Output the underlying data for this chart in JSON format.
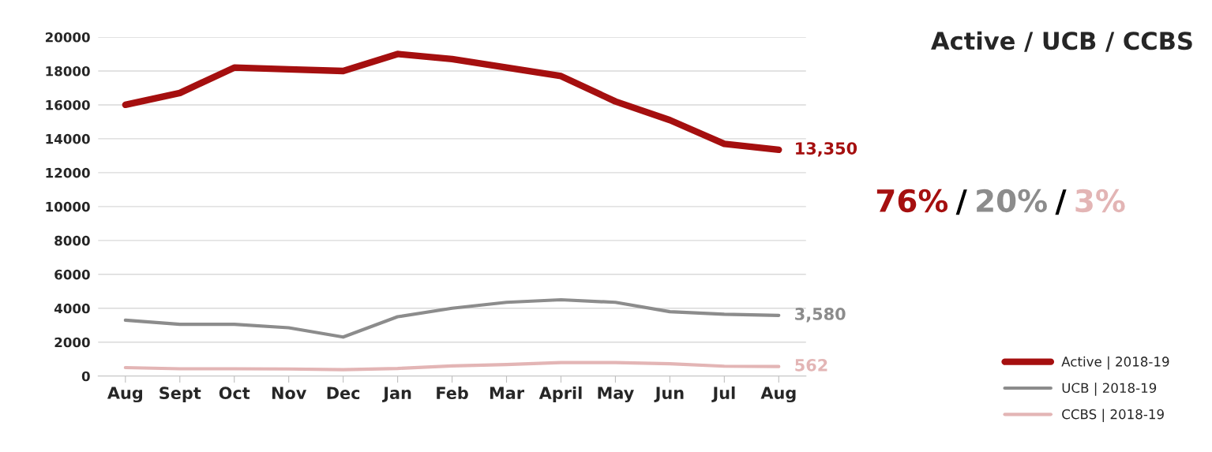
{
  "chart_data": {
    "type": "line",
    "title": "Active / UCB / CCBS",
    "categories": [
      "Aug",
      "Sept",
      "Oct",
      "Nov",
      "Dec",
      "Jan",
      "Feb",
      "Mar",
      "April",
      "May",
      "Jun",
      "Jul",
      "Aug"
    ],
    "series": [
      {
        "name": "Active | 2018-19",
        "color": "#a50f0f",
        "values": [
          16000,
          16700,
          18200,
          18100,
          18000,
          19000,
          18700,
          18200,
          17700,
          16200,
          15100,
          13700,
          13350
        ],
        "value_labels": [
          null,
          null,
          null,
          null,
          null,
          null,
          null,
          null,
          null,
          null,
          null,
          null,
          "13,350"
        ]
      },
      {
        "name": "UCB | 2018-19",
        "color": "#8c8c8c",
        "values": [
          3300,
          3050,
          3050,
          2850,
          2300,
          3500,
          4000,
          4350,
          4500,
          4350,
          3800,
          3650,
          3580
        ],
        "value_labels": [
          null,
          null,
          null,
          null,
          null,
          null,
          null,
          null,
          null,
          null,
          null,
          null,
          "3,580"
        ]
      },
      {
        "name": "CCBS | 2018-19",
        "color": "#e3b5b5",
        "values": [
          500,
          430,
          430,
          420,
          380,
          450,
          600,
          680,
          800,
          800,
          730,
          580,
          562
        ],
        "value_labels": [
          null,
          null,
          null,
          null,
          null,
          null,
          null,
          null,
          null,
          null,
          null,
          null,
          "562"
        ]
      }
    ],
    "annotations": [
      "76%",
      "/",
      "20%",
      "/",
      "3%"
    ],
    "ylim": [
      0,
      20000
    ],
    "yticks": [
      0,
      2000,
      4000,
      6000,
      8000,
      10000,
      12000,
      14000,
      16000,
      18000,
      20000
    ],
    "grid": "y",
    "legend": "bottom right",
    "marker": "none",
    "line_style": "solid"
  }
}
